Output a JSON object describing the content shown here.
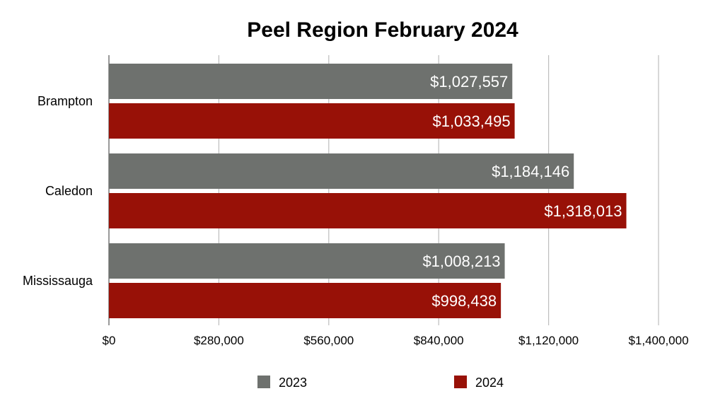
{
  "chart_data": {
    "type": "bar",
    "orientation": "horizontal",
    "title": "Peel Region February 2024",
    "xlabel": "",
    "ylabel": "",
    "categories": [
      "Brampton",
      "Caledon",
      "Mississauga"
    ],
    "series": [
      {
        "name": "2023",
        "color": "#6e716e",
        "values": [
          1027557,
          1184146,
          1008213
        ],
        "labels": [
          "$1,027,557",
          "$1,184,146",
          "$1,008,213"
        ]
      },
      {
        "name": "2024",
        "color": "#981107",
        "values": [
          1033495,
          1318013,
          998438
        ],
        "labels": [
          "$1,033,495",
          "$1,318,013",
          "$998,438"
        ]
      }
    ],
    "xlim": [
      0,
      1400000
    ],
    "ticks": [
      0,
      280000,
      560000,
      840000,
      1120000,
      1400000
    ],
    "tick_labels": [
      "$0",
      "$280,000",
      "$560,000",
      "$840,000",
      "$1,120,000",
      "$1,400,000"
    ],
    "grid": true,
    "legend_position": "bottom",
    "gridline_color": "#bdbdbd"
  }
}
